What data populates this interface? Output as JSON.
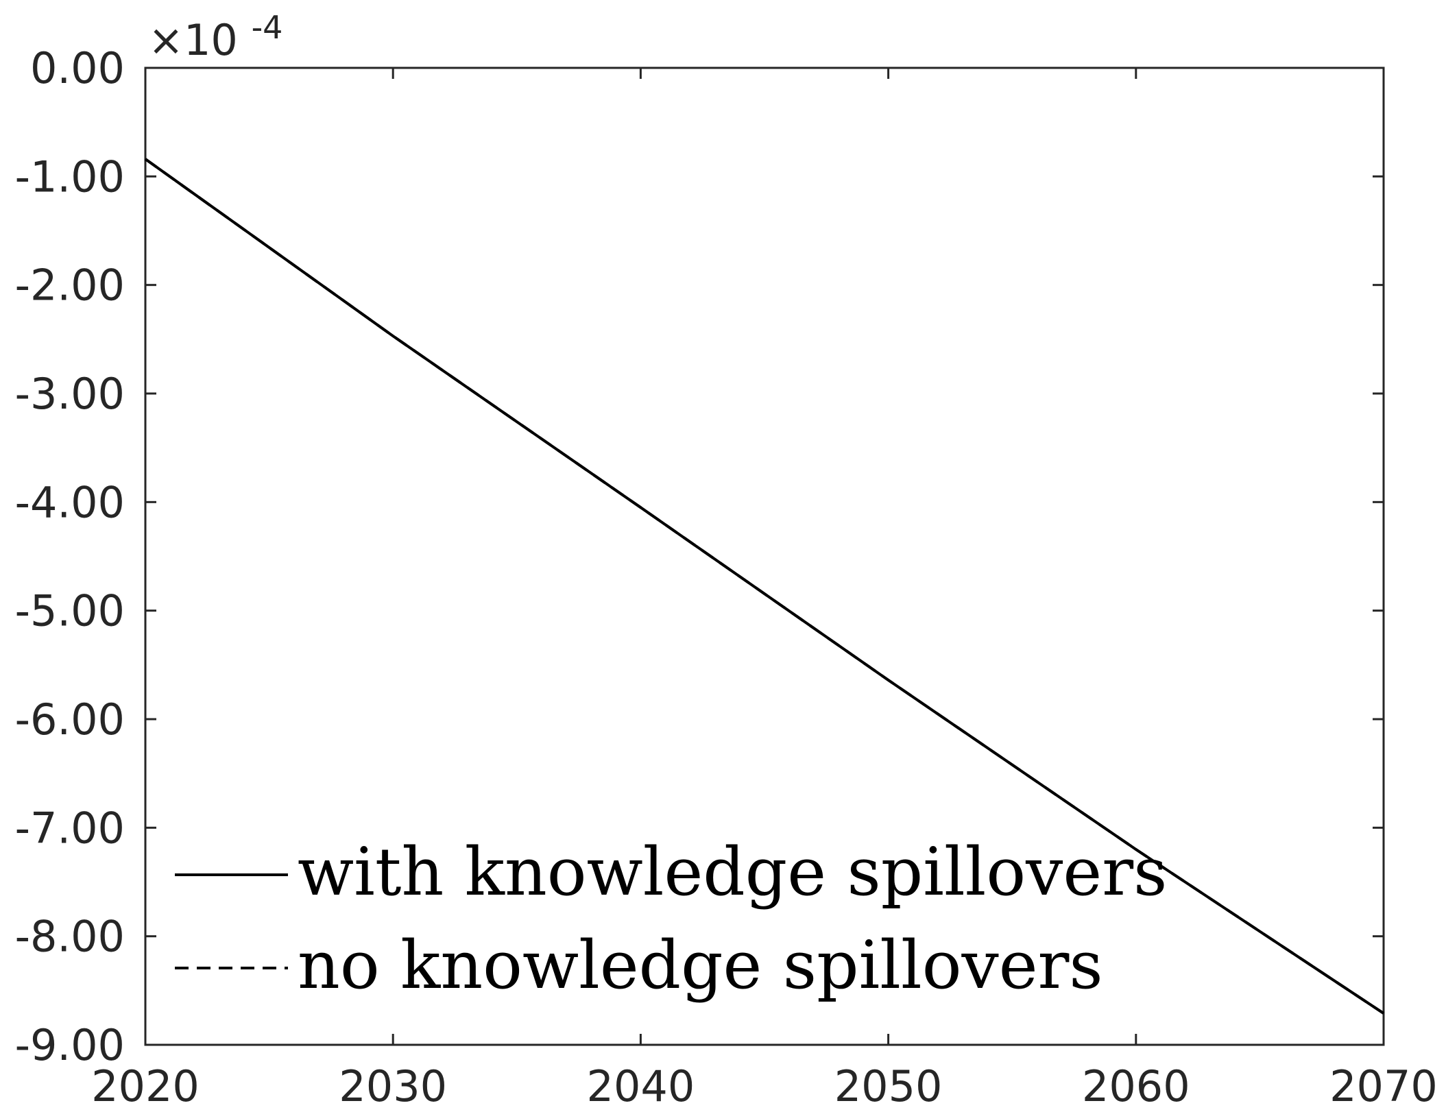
{
  "chart_data": {
    "type": "line",
    "title": "",
    "xlabel": "",
    "ylabel": "",
    "y_exponent_label": "×10",
    "y_exponent_power": "-4",
    "xlim": [
      2020,
      2070
    ],
    "ylim": [
      -9.0,
      0.0
    ],
    "x_ticks": [
      2020,
      2030,
      2040,
      2050,
      2060,
      2070
    ],
    "x_tick_labels": [
      "2020",
      "2030",
      "2040",
      "2050",
      "2060",
      "2070"
    ],
    "y_ticks": [
      0,
      -1,
      -2,
      -3,
      -4,
      -5,
      -6,
      -7,
      -8,
      -9
    ],
    "y_tick_labels": [
      "0.00",
      "-1.00",
      "-2.00",
      "-3.00",
      "-4.00",
      "-5.00",
      "-6.00",
      "-7.00",
      "-8.00",
      "-9.00"
    ],
    "grid": false,
    "legend_position": "bottom-left",
    "series": [
      {
        "name": "with knowledge spillovers",
        "style": "solid",
        "color": "#000000",
        "x": [
          2020,
          2030,
          2040,
          2050,
          2060,
          2070
        ],
        "y": [
          -0.84,
          -2.47,
          -4.05,
          -5.64,
          -7.2,
          -8.71
        ]
      },
      {
        "name": "no knowledge spillovers",
        "style": "dashed",
        "color": "#000000",
        "x": [
          2020,
          2030,
          2040,
          2050,
          2060,
          2070
        ],
        "y": [
          -0.84,
          -2.47,
          -4.05,
          -5.64,
          -7.2,
          -8.71
        ]
      }
    ],
    "axis_color": "#262626"
  }
}
